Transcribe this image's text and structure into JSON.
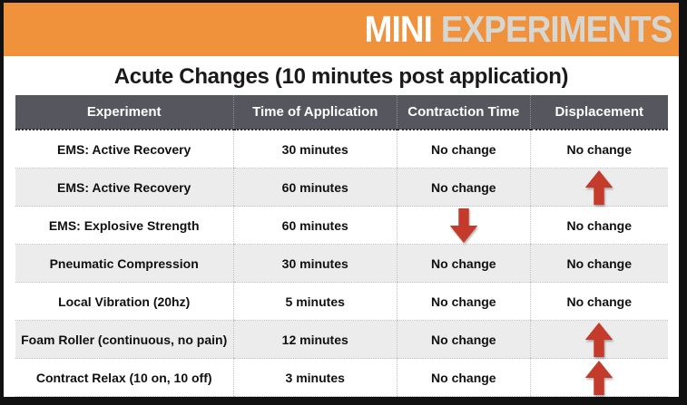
{
  "banner": {
    "title_primary": "MINI",
    "title_secondary": "EXPERIMENTS"
  },
  "page_title": "Acute Changes (10 minutes post application)",
  "colors": {
    "banner_orange": "#F0913C",
    "banner_secondary": "#D6D6D2",
    "header_gray": "#55565E",
    "row_alt": "#ECECEC",
    "arrow_red": "#C43B2B",
    "title_text": "#1A1A1A",
    "frame_border": "#111111"
  },
  "chart_data": {
    "type": "table",
    "title": "Acute Changes (10 minutes post application)",
    "columns": [
      "Experiment",
      "Time of Application",
      "Contraction Time",
      "Displacement"
    ],
    "rows": [
      [
        "EMS: Active Recovery",
        "30 minutes",
        "No change",
        "No change"
      ],
      [
        "EMS: Active Recovery",
        "60 minutes",
        "No change",
        "arrow-up"
      ],
      [
        "EMS: Explosive Strength",
        "60 minutes",
        "arrow-down",
        "No change"
      ],
      [
        "Pneumatic Compression",
        "30 minutes",
        "No change",
        "No change"
      ],
      [
        "Local Vibration (20hz)",
        "5 minutes",
        "No change",
        "No change"
      ],
      [
        "Foam Roller (continuous, no pain)",
        "12 minutes",
        "No change",
        "arrow-up"
      ],
      [
        "Contract Relax (10 on, 10 off)",
        "3 minutes",
        "No change",
        "arrow-up"
      ]
    ]
  }
}
